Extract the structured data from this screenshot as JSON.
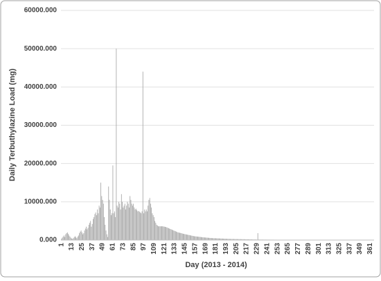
{
  "chart_data": {
    "type": "bar",
    "y_label": "Daily Terbuthylazine Load (mg)",
    "x_label": "Day  (2013 - 2014)",
    "color": "#a6a6a6",
    "grid": true,
    "ylim": [
      0,
      60000
    ],
    "yticks": [
      {
        "value": 0,
        "label": "0.000"
      },
      {
        "value": 10000,
        "label": "10000.000"
      },
      {
        "value": 20000,
        "label": "20000.000"
      },
      {
        "value": 30000,
        "label": "30000.000"
      },
      {
        "value": 40000,
        "label": "40000.000"
      },
      {
        "value": 50000,
        "label": "50000.000"
      },
      {
        "value": 60000,
        "label": "60000.000"
      }
    ],
    "categories": [
      "1",
      null,
      null,
      null,
      null,
      null,
      null,
      null,
      null,
      null,
      null,
      null,
      "13",
      null,
      null,
      null,
      null,
      null,
      null,
      null,
      null,
      null,
      null,
      null,
      "25",
      null,
      null,
      null,
      null,
      null,
      null,
      null,
      null,
      null,
      null,
      null,
      "37",
      null,
      null,
      null,
      null,
      null,
      null,
      null,
      null,
      null,
      null,
      null,
      "49",
      null,
      null,
      null,
      null,
      null,
      null,
      null,
      null,
      null,
      null,
      null,
      "61",
      null,
      null,
      null,
      null,
      null,
      null,
      null,
      null,
      null,
      null,
      null,
      "73",
      null,
      null,
      null,
      null,
      null,
      null,
      null,
      null,
      null,
      null,
      null,
      "85",
      null,
      null,
      null,
      null,
      null,
      null,
      null,
      null,
      null,
      null,
      null,
      "97",
      null,
      null,
      null,
      null,
      null,
      null,
      null,
      null,
      null,
      null,
      null,
      "109",
      null,
      null,
      null,
      null,
      null,
      null,
      null,
      null,
      null,
      null,
      null,
      "121",
      null,
      null,
      null,
      null,
      null,
      null,
      null,
      null,
      null,
      null,
      null,
      "133",
      null,
      null,
      null,
      null,
      null,
      null,
      null,
      null,
      null,
      null,
      null,
      "145",
      null,
      null,
      null,
      null,
      null,
      null,
      null,
      null,
      null,
      null,
      null,
      "157",
      null,
      null,
      null,
      null,
      null,
      null,
      null,
      null,
      null,
      null,
      null,
      "169",
      null,
      null,
      null,
      null,
      null,
      null,
      null,
      null,
      null,
      null,
      null,
      "181",
      null,
      null,
      null,
      null,
      null,
      null,
      null,
      null,
      null,
      null,
      null,
      "193",
      null,
      null,
      null,
      null,
      null,
      null,
      null,
      null,
      null,
      null,
      null,
      "205",
      null,
      null,
      null,
      null,
      null,
      null,
      null,
      null,
      null,
      null,
      null,
      "217",
      null,
      null,
      null,
      null,
      null,
      null,
      null,
      null,
      null,
      null,
      null,
      "229",
      null,
      null,
      null,
      null,
      null,
      null,
      null,
      null,
      null,
      null,
      null,
      "241",
      null,
      null,
      null,
      null,
      null,
      null,
      null,
      null,
      null,
      null,
      null,
      "253",
      null,
      null,
      null,
      null,
      null,
      null,
      null,
      null,
      null,
      null,
      null,
      "265",
      null,
      null,
      null,
      null,
      null,
      null,
      null,
      null,
      null,
      null,
      null,
      "277",
      null,
      null,
      null,
      null,
      null,
      null,
      null,
      null,
      null,
      null,
      null,
      "289",
      null,
      null,
      null,
      null,
      null,
      null,
      null,
      null,
      null,
      null,
      null,
      "301",
      null,
      null,
      null,
      null,
      null,
      null,
      null,
      null,
      null,
      null,
      null,
      "313",
      null,
      null,
      null,
      null,
      null,
      null,
      null,
      null,
      null,
      null,
      null,
      "325",
      null,
      null,
      null,
      null,
      null,
      null,
      null,
      null,
      null,
      null,
      null,
      "337",
      null,
      null,
      null,
      null,
      null,
      null,
      null,
      null,
      null,
      null,
      null,
      "349",
      null,
      null,
      null,
      null,
      null,
      null,
      null,
      null,
      null,
      null,
      null,
      "361",
      null,
      null,
      null,
      null
    ],
    "values": [
      300,
      600,
      900,
      1200,
      800,
      1500,
      1800,
      2000,
      1600,
      1200,
      900,
      600,
      400,
      300,
      500,
      800,
      1000,
      700,
      500,
      900,
      1200,
      1800,
      2200,
      2500,
      2000,
      1500,
      1800,
      2500,
      3000,
      3500,
      2800,
      3200,
      4000,
      4500,
      5000,
      3500,
      4200,
      5500,
      6000,
      6800,
      7200,
      6500,
      8000,
      7000,
      9000,
      8500,
      15000,
      11500,
      10500,
      9500,
      6000,
      4000,
      2500,
      1500,
      800,
      14000,
      10500,
      8000,
      6500,
      7000,
      19500,
      7000,
      7500,
      6000,
      50000,
      9000,
      8500,
      10000,
      9500,
      8000,
      12000,
      10000,
      8500,
      9000,
      9500,
      8000,
      9000,
      10000,
      9500,
      8500,
      11500,
      10500,
      9500,
      9000,
      9500,
      8500,
      8000,
      8200,
      7800,
      7500,
      7600,
      7400,
      7200,
      7000,
      7500,
      44000,
      7000,
      8000,
      7500,
      8000,
      7500,
      9000,
      10500,
      11000,
      9500,
      8500,
      7000,
      6500,
      6000,
      5000,
      4500,
      4000,
      3800,
      3600,
      3600,
      3600,
      3600,
      3600,
      3600,
      3550,
      3500,
      3450,
      3400,
      3300,
      3200,
      3100,
      3000,
      2900,
      2800,
      2700,
      2600,
      2500,
      2400,
      2300,
      2200,
      2100,
      2000,
      1950,
      1900,
      1850,
      1800,
      1700,
      1650,
      1600,
      1550,
      1500,
      1450,
      1400,
      1350,
      1300,
      1250,
      1200,
      1150,
      1100,
      1050,
      1000,
      980,
      950,
      920,
      900,
      870,
      840,
      810,
      780,
      750,
      720,
      700,
      680,
      660,
      640,
      620,
      600,
      580,
      560,
      540,
      520,
      500,
      490,
      480,
      470,
      460,
      450,
      440,
      430,
      420,
      410,
      400,
      390,
      380,
      370,
      360,
      350,
      340,
      330,
      320,
      310,
      300,
      295,
      290,
      285,
      280,
      275,
      270,
      265,
      260,
      255,
      250,
      245,
      240,
      235,
      230,
      225,
      220,
      215,
      210,
      205,
      200,
      195,
      190,
      185,
      180,
      175,
      170,
      165,
      160,
      155,
      150,
      145,
      140,
      1800,
      140,
      135,
      130,
      128,
      126,
      124,
      122,
      120,
      118,
      116,
      114,
      112,
      110,
      108,
      106,
      104,
      102,
      100,
      98,
      96,
      94,
      92,
      90,
      88,
      86,
      84,
      82,
      80,
      78,
      76,
      74,
      72,
      70,
      68,
      66,
      64,
      62,
      60,
      58,
      56,
      55,
      54,
      53,
      52,
      51,
      50,
      49,
      48,
      47,
      46,
      45,
      44,
      43,
      42,
      41,
      40,
      39,
      38,
      37,
      36,
      35,
      34,
      33,
      32,
      31,
      30,
      30,
      30,
      30,
      30,
      30,
      30,
      30,
      30,
      30,
      30,
      30,
      30,
      30,
      30,
      30,
      30,
      30,
      30,
      30,
      30,
      30,
      30,
      30,
      30,
      30,
      30,
      30,
      30,
      30,
      30,
      30,
      30,
      30,
      30,
      30,
      30,
      30,
      30,
      30,
      30,
      30,
      30,
      30,
      30,
      30,
      30,
      30,
      30,
      30,
      30,
      30,
      30,
      30,
      30,
      30,
      30,
      30,
      30,
      30,
      30,
      30,
      30,
      30,
      30,
      30,
      30,
      30,
      30,
      30
    ]
  }
}
